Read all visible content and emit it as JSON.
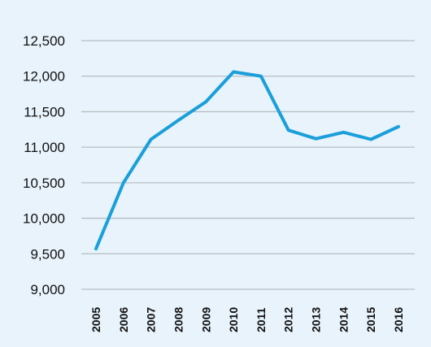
{
  "chart_data": {
    "type": "line",
    "title": "",
    "xlabel": "",
    "ylabel": "",
    "x": [
      "2005",
      "2006",
      "2007",
      "2008",
      "2009",
      "2010",
      "2011",
      "2012",
      "2013",
      "2014",
      "2015",
      "2016"
    ],
    "series": [
      {
        "values": [
          9570,
          10500,
          11110,
          11380,
          11640,
          12060,
          12000,
          11240,
          11120,
          11210,
          11110,
          11290
        ]
      }
    ],
    "ylim": [
      9000,
      12500
    ],
    "yticks": [
      9000,
      9500,
      10000,
      10500,
      11000,
      11500,
      12000,
      12500
    ],
    "ytick_labels": [
      "9,000",
      "9,500",
      "10,000",
      "10,500",
      "11,000",
      "11,500",
      "12,000",
      "12,500"
    ],
    "grid": "horizontal",
    "legend": "none",
    "colors": {
      "background": "#E8F3FB",
      "line": "#1A9FDA",
      "grid": "#B7BDC2",
      "text": "#111111"
    }
  }
}
